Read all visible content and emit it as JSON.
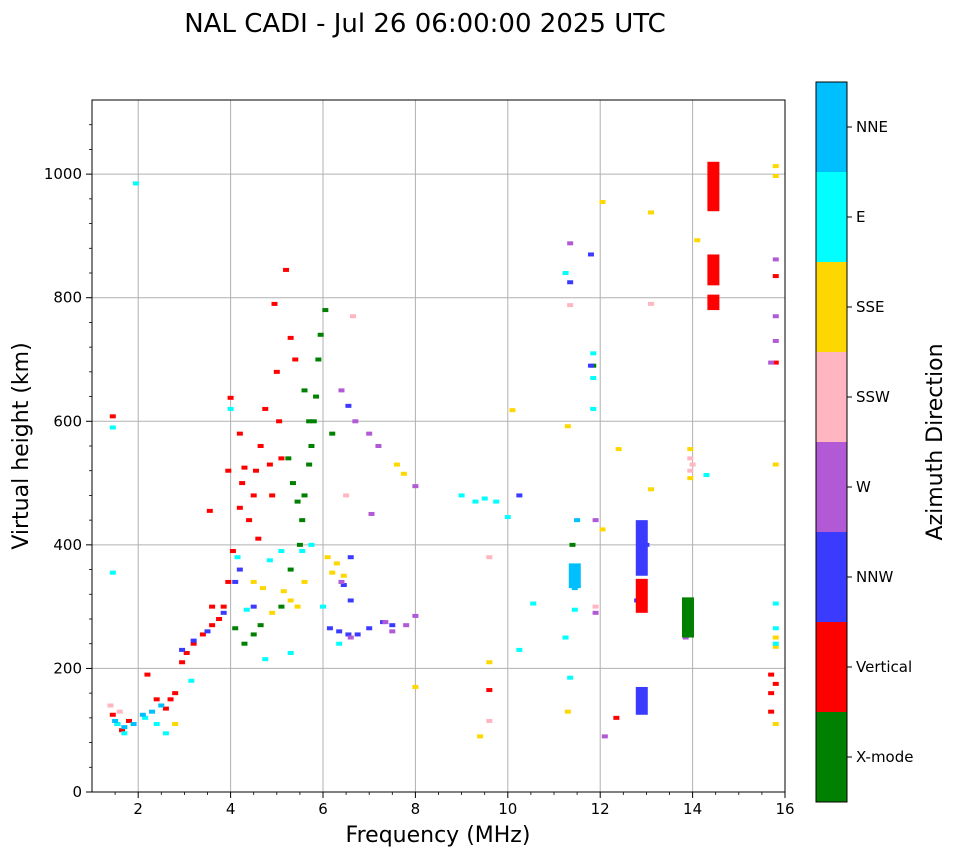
{
  "chart_data": {
    "type": "scatter",
    "title": "NAL CADI - Jul 26 06:00:00 2025 UTC",
    "xlabel": "Frequency (MHz)",
    "ylabel": "Virtual height (km)",
    "xlim": [
      1,
      16
    ],
    "ylim": [
      0,
      1120
    ],
    "xticks": [
      2,
      4,
      6,
      8,
      10,
      12,
      14,
      16
    ],
    "yticks": [
      0,
      200,
      400,
      600,
      800,
      1000
    ],
    "grid": true,
    "colorbar": {
      "label": "Azimuth Direction",
      "categories": [
        {
          "name": "X-mode",
          "color": "#008000"
        },
        {
          "name": "Vertical",
          "color": "#ff0000"
        },
        {
          "name": "NNW",
          "color": "#3b3bff"
        },
        {
          "name": "W",
          "color": "#b25ad6"
        },
        {
          "name": "SSW",
          "color": "#ffb6c1"
        },
        {
          "name": "SSE",
          "color": "#ffd700"
        },
        {
          "name": "E",
          "color": "#00ffff"
        },
        {
          "name": "NNE",
          "color": "#00bfff"
        }
      ]
    },
    "series": [
      {
        "name": "Vertical",
        "points": [
          [
            1.45,
            608
          ],
          [
            1.45,
            125
          ],
          [
            1.55,
            110
          ],
          [
            1.65,
            100
          ],
          [
            1.8,
            115
          ],
          [
            2.2,
            190
          ],
          [
            2.4,
            150
          ],
          [
            2.6,
            135
          ],
          [
            2.7,
            150
          ],
          [
            2.8,
            160
          ],
          [
            2.95,
            210
          ],
          [
            3.05,
            225
          ],
          [
            3.2,
            240
          ],
          [
            3.4,
            255
          ],
          [
            3.6,
            270
          ],
          [
            3.75,
            280
          ],
          [
            3.85,
            300
          ],
          [
            3.95,
            340
          ],
          [
            4.05,
            390
          ],
          [
            4.2,
            460
          ],
          [
            4.25,
            500
          ],
          [
            4.3,
            525
          ],
          [
            4.4,
            440
          ],
          [
            4.5,
            480
          ],
          [
            4.55,
            520
          ],
          [
            4.6,
            410
          ],
          [
            4.65,
            560
          ],
          [
            4.75,
            620
          ],
          [
            4.85,
            530
          ],
          [
            4.9,
            480
          ],
          [
            4.95,
            790
          ],
          [
            5.0,
            680
          ],
          [
            5.05,
            600
          ],
          [
            5.1,
            540
          ],
          [
            5.2,
            845
          ],
          [
            5.3,
            735
          ],
          [
            5.4,
            700
          ],
          [
            4.0,
            638
          ],
          [
            4.2,
            580
          ],
          [
            3.95,
            520
          ],
          [
            3.55,
            455
          ],
          [
            3.6,
            300
          ],
          [
            12.35,
            120
          ],
          [
            9.6,
            165
          ],
          [
            13.9,
            290
          ],
          [
            15.7,
            190
          ],
          [
            15.7,
            160
          ],
          [
            15.7,
            130
          ],
          [
            15.8,
            175
          ],
          [
            15.8,
            695
          ],
          [
            15.8,
            835
          ]
        ]
      },
      {
        "name": "X-mode",
        "points": [
          [
            4.1,
            265
          ],
          [
            4.3,
            240
          ],
          [
            4.5,
            255
          ],
          [
            4.65,
            270
          ],
          [
            5.1,
            300
          ],
          [
            5.3,
            360
          ],
          [
            5.5,
            400
          ],
          [
            5.55,
            440
          ],
          [
            5.6,
            480
          ],
          [
            5.7,
            530
          ],
          [
            5.75,
            560
          ],
          [
            5.8,
            600
          ],
          [
            5.85,
            640
          ],
          [
            5.9,
            700
          ],
          [
            5.95,
            740
          ],
          [
            6.05,
            780
          ],
          [
            6.2,
            580
          ],
          [
            5.35,
            500
          ],
          [
            5.45,
            470
          ],
          [
            5.6,
            650
          ],
          [
            5.7,
            600
          ],
          [
            5.25,
            540
          ],
          [
            11.4,
            400
          ],
          [
            11.4,
            360
          ],
          [
            11.85,
            690
          ],
          [
            13.9,
            255
          ],
          [
            13.9,
            270
          ]
        ]
      },
      {
        "name": "NNW",
        "points": [
          [
            2.95,
            230
          ],
          [
            3.2,
            245
          ],
          [
            3.5,
            260
          ],
          [
            3.85,
            290
          ],
          [
            4.1,
            340
          ],
          [
            4.2,
            360
          ],
          [
            4.5,
            300
          ],
          [
            6.15,
            265
          ],
          [
            6.35,
            260
          ],
          [
            6.55,
            255
          ],
          [
            6.75,
            255
          ],
          [
            7.0,
            265
          ],
          [
            7.3,
            275
          ],
          [
            7.5,
            270
          ],
          [
            6.6,
            380
          ],
          [
            6.55,
            625
          ],
          [
            6.45,
            335
          ],
          [
            6.6,
            310
          ],
          [
            11.35,
            825
          ],
          [
            11.8,
            870
          ],
          [
            11.8,
            690
          ],
          [
            10.25,
            480
          ],
          [
            12.8,
            310
          ],
          [
            12.85,
            150
          ],
          [
            13.0,
            400
          ]
        ]
      },
      {
        "name": "W",
        "points": [
          [
            6.4,
            650
          ],
          [
            6.7,
            600
          ],
          [
            7.0,
            580
          ],
          [
            7.2,
            560
          ],
          [
            7.05,
            450
          ],
          [
            7.35,
            275
          ],
          [
            7.5,
            260
          ],
          [
            7.8,
            270
          ],
          [
            8.0,
            285
          ],
          [
            8.0,
            495
          ],
          [
            6.4,
            340
          ],
          [
            6.6,
            250
          ],
          [
            11.35,
            888
          ],
          [
            11.9,
            440
          ],
          [
            12.1,
            90
          ],
          [
            11.9,
            290
          ],
          [
            15.8,
            862
          ],
          [
            15.8,
            770
          ],
          [
            15.8,
            730
          ],
          [
            15.7,
            695
          ],
          [
            13.85,
            250
          ]
        ]
      },
      {
        "name": "SSW",
        "points": [
          [
            1.4,
            140
          ],
          [
            1.6,
            130
          ],
          [
            6.5,
            480
          ],
          [
            6.65,
            770
          ],
          [
            9.6,
            115
          ],
          [
            9.6,
            380
          ],
          [
            11.35,
            788
          ],
          [
            13.1,
            790
          ],
          [
            11.9,
            300
          ],
          [
            13.95,
            540
          ],
          [
            14.0,
            530
          ],
          [
            13.95,
            520
          ]
        ]
      },
      {
        "name": "SSE",
        "points": [
          [
            2.8,
            110
          ],
          [
            4.5,
            340
          ],
          [
            4.7,
            330
          ],
          [
            4.9,
            290
          ],
          [
            5.15,
            325
          ],
          [
            5.3,
            310
          ],
          [
            5.45,
            300
          ],
          [
            5.6,
            340
          ],
          [
            6.1,
            380
          ],
          [
            6.2,
            355
          ],
          [
            6.3,
            370
          ],
          [
            6.45,
            350
          ],
          [
            7.6,
            530
          ],
          [
            7.75,
            515
          ],
          [
            8.0,
            170
          ],
          [
            9.6,
            210
          ],
          [
            9.4,
            90
          ],
          [
            10.1,
            618
          ],
          [
            11.3,
            592
          ],
          [
            11.3,
            130
          ],
          [
            12.05,
            955
          ],
          [
            12.05,
            425
          ],
          [
            12.4,
            555
          ],
          [
            13.1,
            938
          ],
          [
            13.1,
            490
          ],
          [
            14.1,
            893
          ],
          [
            13.95,
            555
          ],
          [
            13.95,
            508
          ],
          [
            15.8,
            1013
          ],
          [
            15.8,
            997
          ],
          [
            15.8,
            530
          ],
          [
            15.8,
            250
          ],
          [
            15.8,
            235
          ],
          [
            15.8,
            110
          ]
        ]
      },
      {
        "name": "E",
        "points": [
          [
            1.45,
            590
          ],
          [
            1.45,
            355
          ],
          [
            1.55,
            110
          ],
          [
            1.7,
            95
          ],
          [
            1.95,
            985
          ],
          [
            2.15,
            120
          ],
          [
            2.4,
            110
          ],
          [
            2.6,
            95
          ],
          [
            3.15,
            180
          ],
          [
            4.0,
            620
          ],
          [
            4.15,
            380
          ],
          [
            4.35,
            295
          ],
          [
            4.75,
            215
          ],
          [
            4.85,
            375
          ],
          [
            5.1,
            390
          ],
          [
            5.3,
            225
          ],
          [
            5.55,
            390
          ],
          [
            5.75,
            400
          ],
          [
            6.0,
            300
          ],
          [
            6.35,
            240
          ],
          [
            9.0,
            480
          ],
          [
            9.3,
            470
          ],
          [
            9.5,
            475
          ],
          [
            9.75,
            470
          ],
          [
            10.0,
            445
          ],
          [
            10.25,
            230
          ],
          [
            10.55,
            305
          ],
          [
            11.25,
            840
          ],
          [
            11.35,
            185
          ],
          [
            11.25,
            250
          ],
          [
            11.45,
            295
          ],
          [
            11.85,
            620
          ],
          [
            11.85,
            710
          ],
          [
            11.85,
            670
          ],
          [
            14.3,
            513
          ],
          [
            15.8,
            305
          ],
          [
            15.8,
            265
          ],
          [
            15.8,
            240
          ]
        ]
      },
      {
        "name": "NNE",
        "points": [
          [
            1.5,
            115
          ],
          [
            1.7,
            105
          ],
          [
            1.9,
            110
          ],
          [
            2.1,
            125
          ],
          [
            2.3,
            130
          ],
          [
            2.5,
            140
          ],
          [
            11.45,
            350
          ],
          [
            11.45,
            330
          ],
          [
            11.5,
            440
          ]
        ]
      }
    ],
    "bars": [
      {
        "name": "Vertical",
        "x": 14.45,
        "y0": 940,
        "y1": 1020
      },
      {
        "name": "Vertical",
        "x": 14.45,
        "y0": 820,
        "y1": 870
      },
      {
        "name": "Vertical",
        "x": 14.45,
        "y0": 780,
        "y1": 805
      },
      {
        "name": "NNW",
        "x": 12.9,
        "y0": 350,
        "y1": 440
      },
      {
        "name": "Vertical",
        "x": 12.9,
        "y0": 290,
        "y1": 345
      },
      {
        "name": "NNW",
        "x": 12.9,
        "y0": 125,
        "y1": 170
      },
      {
        "name": "X-mode",
        "x": 13.9,
        "y0": 250,
        "y1": 315
      },
      {
        "name": "NNE",
        "x": 11.45,
        "y0": 330,
        "y1": 370
      }
    ]
  }
}
